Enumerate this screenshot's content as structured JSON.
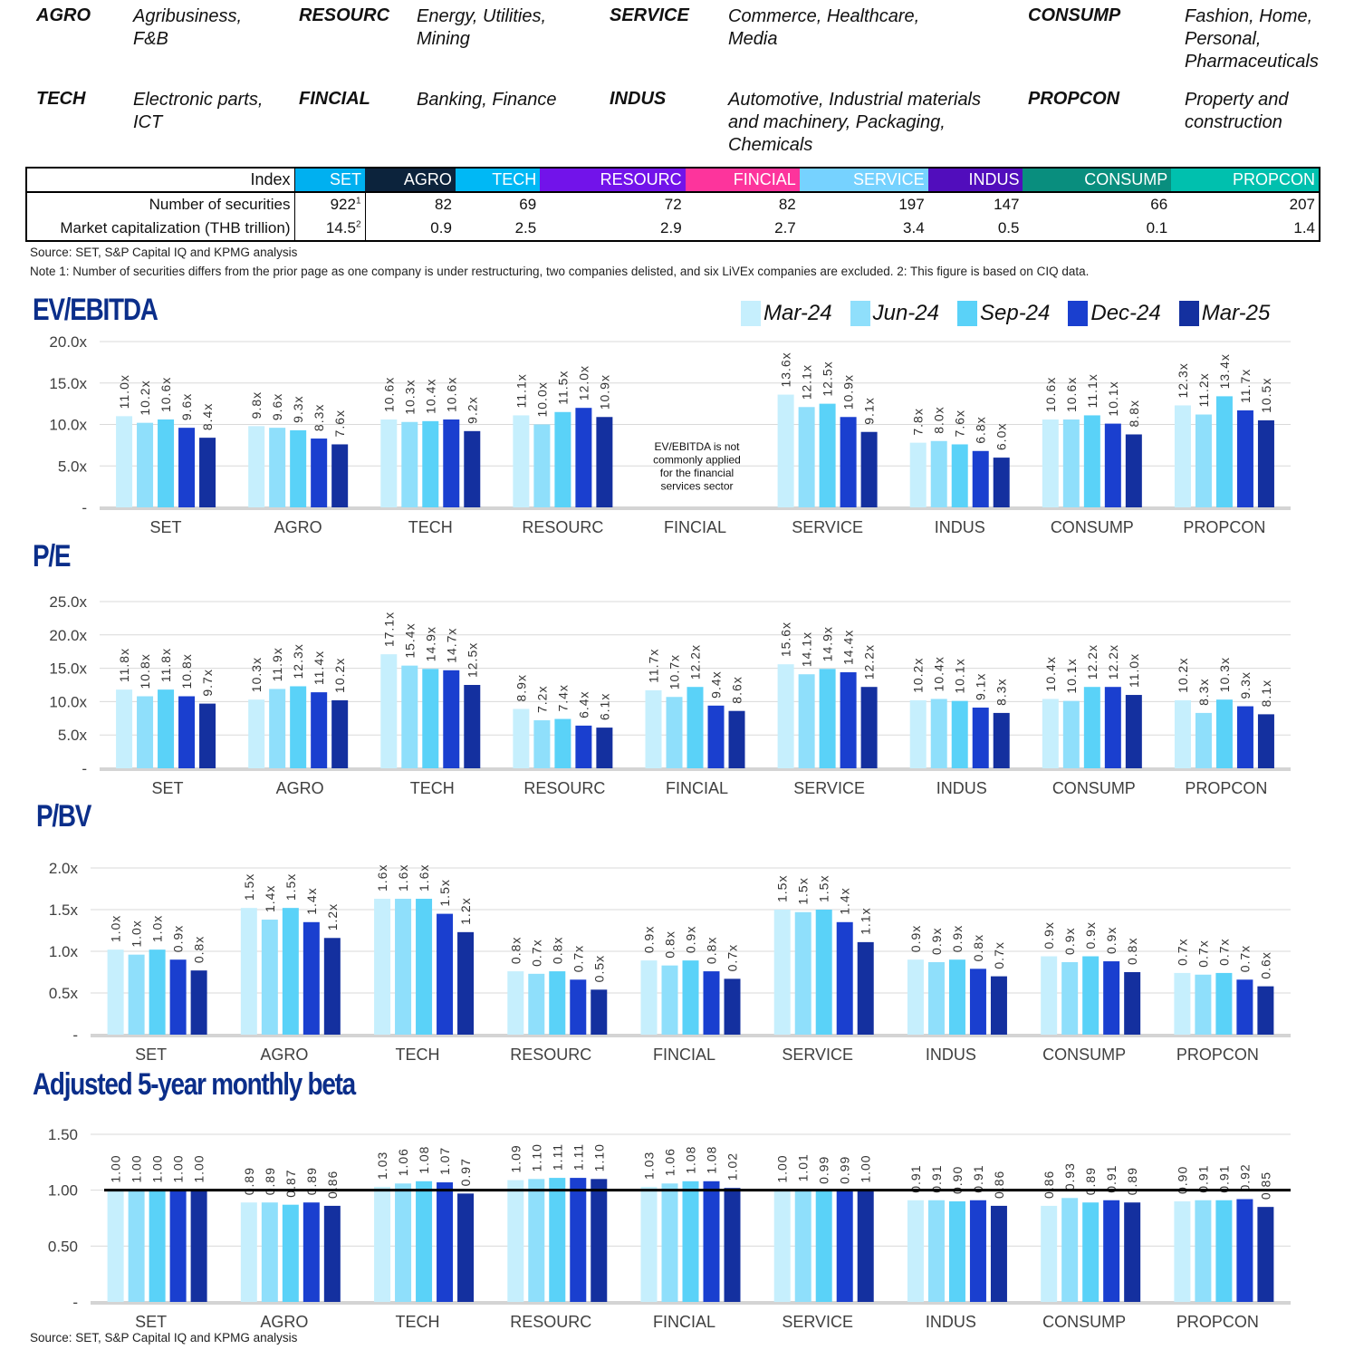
{
  "sectors": [
    {
      "code": "AGRO",
      "desc": "Agribusiness,\nF&B"
    },
    {
      "code": "RESOURC",
      "desc": "Energy, Utilities,\nMining"
    },
    {
      "code": "SERVICE",
      "desc": "Commerce, Healthcare,\nMedia"
    },
    {
      "code": "CONSUMP",
      "desc": "Fashion, Home,\nPersonal,\nPharmaceuticals"
    },
    {
      "code": "TECH",
      "desc": "Electronic parts,\nICT"
    },
    {
      "code": "FINCIAL",
      "desc": "Banking, Finance"
    },
    {
      "code": "INDUS",
      "desc": "Automotive, Industrial materials\nand machinery, Packaging,\nChemicals"
    },
    {
      "code": "PROPCON",
      "desc": "Property and\nconstruction"
    }
  ],
  "index_table": {
    "header_label": "Index",
    "columns": [
      {
        "name": "SET",
        "color": "#00b0f0"
      },
      {
        "name": "AGRO",
        "color": "#0c233c"
      },
      {
        "name": "TECH",
        "color": "#00b8f5"
      },
      {
        "name": "RESOURC",
        "color": "#7213ea"
      },
      {
        "name": "FINCIAL",
        "color": "#fd349c"
      },
      {
        "name": "SERVICE",
        "color": "#76d2ff"
      },
      {
        "name": "INDUS",
        "color": "#510dbc"
      },
      {
        "name": "CONSUMP",
        "color": "#098e7e"
      },
      {
        "name": "PROPCON",
        "color": "#00c0ae"
      }
    ],
    "rows": [
      {
        "label": "Number of securities",
        "values": [
          "922",
          "82",
          "69",
          "72",
          "82",
          "197",
          "147",
          "66",
          "207"
        ],
        "first_sup": "1"
      },
      {
        "label": "Market capitalization (THB trillion)",
        "values": [
          "14.5",
          "0.9",
          "2.5",
          "2.9",
          "2.7",
          "3.4",
          "0.5",
          "0.1",
          "1.4"
        ],
        "first_sup": "2"
      }
    ]
  },
  "source_top": "Source: SET, S&P Capital IQ and KPMG analysis",
  "note": "Note 1: Number of securities differs from the prior page as one company is under restructuring, two companies delisted, and six LiVEx companies are excluded. 2: This figure is based on CIQ data.",
  "source_bottom": "Source: SET, S&P Capital IQ and KPMG analysis",
  "legend": [
    {
      "label": "Mar-24",
      "color": "#c6effd"
    },
    {
      "label": "Jun-24",
      "color": "#8fdffb"
    },
    {
      "label": "Sep-24",
      "color": "#5ad2f8"
    },
    {
      "label": "Dec-24",
      "color": "#1a3fcf"
    },
    {
      "label": "Mar-25",
      "color": "#14309f"
    }
  ],
  "chart_data": [
    {
      "type": "bar",
      "title": "EV/EBITDA",
      "categories": [
        "SET",
        "AGRO",
        "TECH",
        "RESOURC",
        "FINCIAL",
        "SERVICE",
        "INDUS",
        "CONSUMP",
        "PROPCON"
      ],
      "ylim": [
        0,
        20
      ],
      "yticks": [
        "-",
        "5.0x",
        "10.0x",
        "15.0x",
        "20.0x"
      ],
      "label_suffix": "x",
      "label_decimals": 1,
      "grid": true,
      "annotation": {
        "category": "FINCIAL",
        "text": "EV/EBITDA is not\ncommonly applied\nfor the financial\nservices sector"
      },
      "series": [
        {
          "name": "Mar-24",
          "values": [
            11.0,
            9.8,
            10.6,
            11.1,
            null,
            13.6,
            7.8,
            10.6,
            12.3
          ]
        },
        {
          "name": "Jun-24",
          "values": [
            10.2,
            9.6,
            10.3,
            10.0,
            null,
            12.1,
            8.0,
            10.6,
            11.2
          ]
        },
        {
          "name": "Sep-24",
          "values": [
            10.6,
            9.3,
            10.4,
            11.5,
            null,
            12.5,
            7.6,
            11.1,
            13.4
          ]
        },
        {
          "name": "Dec-24",
          "values": [
            9.6,
            8.3,
            10.6,
            12.0,
            null,
            10.9,
            6.8,
            10.1,
            11.7
          ]
        },
        {
          "name": "Mar-25",
          "values": [
            8.4,
            7.6,
            9.2,
            10.9,
            null,
            9.1,
            6.0,
            8.8,
            10.5
          ]
        }
      ]
    },
    {
      "type": "bar",
      "title": "P/E",
      "categories": [
        "SET",
        "AGRO",
        "TECH",
        "RESOURC",
        "FINCIAL",
        "SERVICE",
        "INDUS",
        "CONSUMP",
        "PROPCON"
      ],
      "ylim": [
        0,
        25
      ],
      "yticks": [
        "-",
        "5.0x",
        "10.0x",
        "15.0x",
        "20.0x",
        "25.0x"
      ],
      "label_suffix": "x",
      "label_decimals": 1,
      "grid": true,
      "series": [
        {
          "name": "Mar-24",
          "values": [
            11.8,
            10.3,
            17.1,
            8.9,
            11.7,
            15.6,
            10.2,
            10.4,
            10.2
          ]
        },
        {
          "name": "Jun-24",
          "values": [
            10.8,
            11.9,
            15.4,
            7.2,
            10.7,
            14.1,
            10.4,
            10.1,
            8.3
          ]
        },
        {
          "name": "Sep-24",
          "values": [
            11.8,
            12.3,
            14.9,
            7.4,
            12.2,
            14.9,
            10.1,
            12.2,
            10.3
          ]
        },
        {
          "name": "Dec-24",
          "values": [
            10.8,
            11.4,
            14.7,
            6.4,
            9.4,
            14.4,
            9.1,
            12.2,
            9.3
          ]
        },
        {
          "name": "Mar-25",
          "values": [
            9.7,
            10.2,
            12.5,
            6.1,
            8.6,
            12.2,
            8.3,
            11.0,
            8.1
          ]
        }
      ]
    },
    {
      "type": "bar",
      "title": "P/BV",
      "categories": [
        "SET",
        "AGRO",
        "TECH",
        "RESOURC",
        "FINCIAL",
        "SERVICE",
        "INDUS",
        "CONSUMP",
        "PROPCON"
      ],
      "ylim": [
        0,
        2
      ],
      "yticks": [
        "-",
        "0.5x",
        "1.0x",
        "1.5x",
        "2.0x"
      ],
      "label_suffix": "x",
      "label_decimals": 1,
      "grid": true,
      "series": [
        {
          "name": "Mar-24",
          "values": [
            1.02,
            1.52,
            1.63,
            0.76,
            0.89,
            1.5,
            0.9,
            0.94,
            0.74
          ]
        },
        {
          "name": "Jun-24",
          "values": [
            0.96,
            1.38,
            1.63,
            0.73,
            0.83,
            1.47,
            0.87,
            0.87,
            0.72
          ]
        },
        {
          "name": "Sep-24",
          "values": [
            1.02,
            1.52,
            1.63,
            0.76,
            0.89,
            1.5,
            0.9,
            0.94,
            0.74
          ]
        },
        {
          "name": "Dec-24",
          "values": [
            0.9,
            1.35,
            1.45,
            0.66,
            0.76,
            1.35,
            0.79,
            0.88,
            0.66
          ]
        },
        {
          "name": "Mar-25",
          "values": [
            0.77,
            1.16,
            1.23,
            0.54,
            0.67,
            1.11,
            0.7,
            0.75,
            0.58
          ]
        }
      ],
      "labels": [
        [
          "1.0x",
          "1.5x",
          "1.6x",
          "0.8x",
          "0.9x",
          "1.5x",
          "0.9x",
          "0.9x",
          "0.7x"
        ],
        [
          "1.0x",
          "1.4x",
          "1.6x",
          "0.7x",
          "0.8x",
          "1.5x",
          "0.9x",
          "0.9x",
          "0.7x"
        ],
        [
          "1.0x",
          "1.5x",
          "1.6x",
          "0.8x",
          "0.9x",
          "1.5x",
          "0.9x",
          "0.9x",
          "0.7x"
        ],
        [
          "0.9x",
          "1.4x",
          "1.5x",
          "0.7x",
          "0.8x",
          "1.4x",
          "0.8x",
          "0.9x",
          "0.7x"
        ],
        [
          "0.8x",
          "1.2x",
          "1.2x",
          "0.5x",
          "0.7x",
          "1.1x",
          "0.7x",
          "0.8x",
          "0.6x"
        ]
      ]
    },
    {
      "type": "bar",
      "title": "Adjusted 5-year monthly beta",
      "categories": [
        "SET",
        "AGRO",
        "TECH",
        "RESOURC",
        "FINCIAL",
        "SERVICE",
        "INDUS",
        "CONSUMP",
        "PROPCON"
      ],
      "ylim": [
        0,
        1.5
      ],
      "yticks": [
        "-",
        "0.50",
        "1.00",
        "1.50"
      ],
      "label_suffix": "",
      "label_decimals": 2,
      "grid": true,
      "reference_line": 1.0,
      "series": [
        {
          "name": "Mar-24",
          "values": [
            1.0,
            0.89,
            1.03,
            1.09,
            1.03,
            1.0,
            0.91,
            0.86,
            0.9
          ]
        },
        {
          "name": "Jun-24",
          "values": [
            1.0,
            0.89,
            1.06,
            1.1,
            1.06,
            1.01,
            0.91,
            0.93,
            0.91
          ]
        },
        {
          "name": "Sep-24",
          "values": [
            1.0,
            0.87,
            1.08,
            1.11,
            1.08,
            0.99,
            0.9,
            0.89,
            0.91
          ]
        },
        {
          "name": "Dec-24",
          "values": [
            1.0,
            0.89,
            1.07,
            1.11,
            1.08,
            0.99,
            0.91,
            0.91,
            0.92
          ]
        },
        {
          "name": "Mar-25",
          "values": [
            1.0,
            0.86,
            0.97,
            1.1,
            1.02,
            1.0,
            0.86,
            0.89,
            0.85
          ]
        }
      ]
    }
  ]
}
